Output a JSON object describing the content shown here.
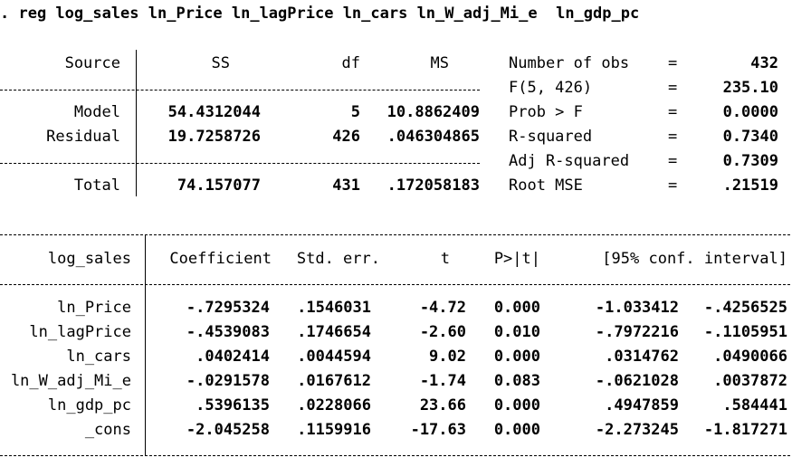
{
  "command": ". reg log_sales ln_Price ln_lagPrice ln_cars ln_W_adj_Mi_e  ln_gdp_pc",
  "anova": {
    "headers": {
      "source": "Source",
      "ss": "SS",
      "df": "df",
      "ms": "MS"
    },
    "rows": [
      {
        "source": "Model",
        "ss": "54.4312044",
        "df": "5",
        "ms": "10.8862409"
      },
      {
        "source": "Residual",
        "ss": "19.7258726",
        "df": "426",
        "ms": ".046304865"
      }
    ],
    "total": {
      "source": "Total",
      "ss": "74.157077",
      "df": "431",
      "ms": ".172058183"
    }
  },
  "stats": [
    {
      "label": "Number of obs",
      "eq": "=",
      "value": "432"
    },
    {
      "label": "F(5, 426)",
      "eq": "=",
      "value": "235.10"
    },
    {
      "label": "Prob > F",
      "eq": "=",
      "value": "0.0000"
    },
    {
      "label": "R-squared",
      "eq": "=",
      "value": "0.7340"
    },
    {
      "label": "Adj R-squared",
      "eq": "=",
      "value": "0.7309"
    },
    {
      "label": "Root MSE",
      "eq": "=",
      "value": ".21519"
    }
  ],
  "coef": {
    "headers": {
      "var": "log_sales",
      "coef": "Coefficient",
      "se": "Std. err.",
      "t": "t",
      "p": "P>|t|",
      "ci": "[95% conf. interval]"
    },
    "rows": [
      {
        "var": "ln_Price",
        "coef": "-.7295324",
        "se": ".1546031",
        "t": "-4.72",
        "p": "0.000",
        "lo": "-1.033412",
        "hi": "-.4256525"
      },
      {
        "var": "ln_lagPrice",
        "coef": "-.4539083",
        "se": ".1746654",
        "t": "-2.60",
        "p": "0.010",
        "lo": "-.7972216",
        "hi": "-.1105951"
      },
      {
        "var": "ln_cars",
        "coef": ".0402414",
        "se": ".0044594",
        "t": "9.02",
        "p": "0.000",
        "lo": ".0314762",
        "hi": ".0490066"
      },
      {
        "var": "ln_W_adj_Mi_e",
        "coef": "-.0291578",
        "se": ".0167612",
        "t": "-1.74",
        "p": "0.083",
        "lo": "-.0621028",
        "hi": ".0037872"
      },
      {
        "var": "ln_gdp_pc",
        "coef": ".5396135",
        "se": ".0228066",
        "t": "23.66",
        "p": "0.000",
        "lo": ".4947859",
        "hi": ".584441"
      },
      {
        "var": "_cons",
        "coef": "-2.045258",
        "se": ".1159916",
        "t": "-17.63",
        "p": "0.000",
        "lo": "-2.273245",
        "hi": "-1.817271"
      }
    ]
  }
}
